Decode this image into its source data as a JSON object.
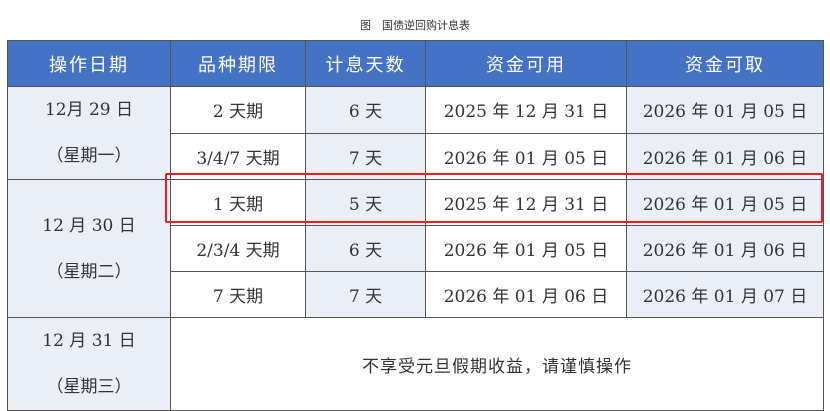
{
  "caption": "图　国债逆回购计息表",
  "headers": [
    "操作日期",
    "品种期限",
    "计息天数",
    "资金可用",
    "资金可取"
  ],
  "groups": [
    {
      "date": "12月 29 日",
      "weekday": "（星期一）",
      "rows": [
        [
          "2 天期",
          "6 天",
          "2025 年 12 月 31 日",
          "2026 年 01 月 05 日"
        ],
        [
          "3/4/7 天期",
          "7 天",
          "2026 年 01 月 05 日",
          "2026 年 01 月 06 日"
        ]
      ]
    },
    {
      "date": "12 月 30 日",
      "weekday": "（星期二）",
      "rows": [
        [
          "1 天期",
          "5 天",
          "2025 年 12 月 31 日",
          "2026 年 01 月 05 日"
        ],
        [
          "2/3/4 天期",
          "6 天",
          "2026 年 01 月 05 日",
          "2026 年 01 月 06 日"
        ],
        [
          "7 天期",
          "7 天",
          "2026 年 01 月 06 日",
          "2026 年 01 月 07 日"
        ]
      ]
    },
    {
      "date": "12 月 31 日",
      "weekday": "（星期三）",
      "note": "不享受元旦假期收益，请谨慎操作"
    }
  ],
  "colors": {
    "header": "#4472c4",
    "shade": "#e9eef7",
    "highlight": "#e8201e"
  }
}
